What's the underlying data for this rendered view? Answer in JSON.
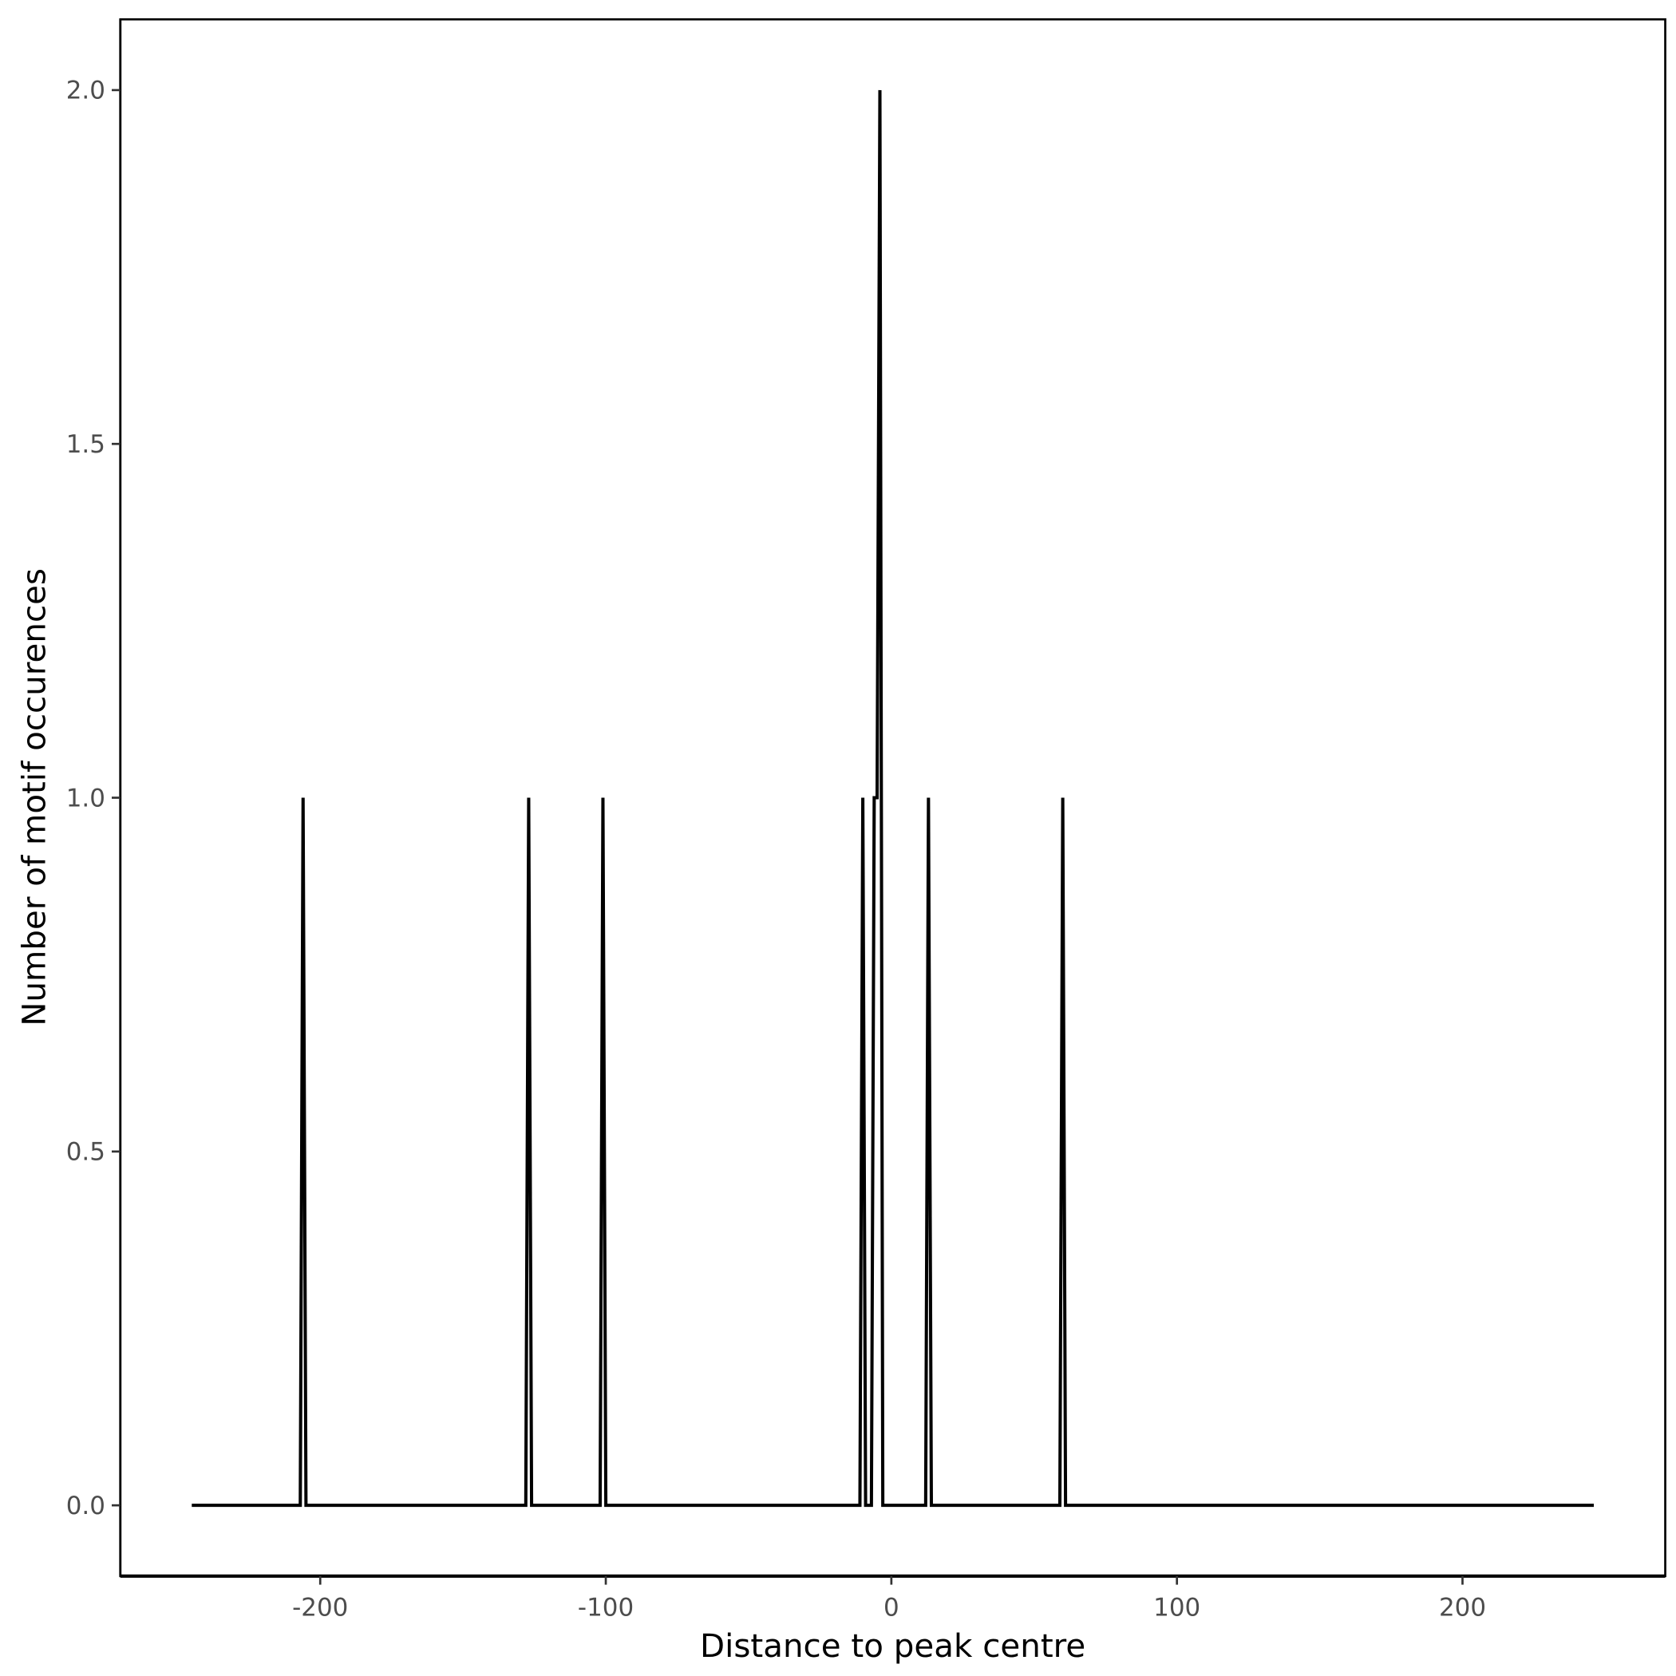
{
  "chart_data": {
    "type": "line",
    "title": "",
    "xlabel": "Distance to peak centre",
    "ylabel": "Number of motif occurences",
    "xlim": [
      -270,
      271
    ],
    "ylim": [
      -0.1,
      2.1
    ],
    "xticks": [
      -200,
      -100,
      0,
      100,
      200
    ],
    "xtick_labels": [
      "-200",
      "-100",
      "0",
      "100",
      "200"
    ],
    "yticks": [
      0,
      0.5,
      1,
      1.5,
      2
    ],
    "ytick_labels": [
      "0.0",
      "0.5",
      "1.0",
      "1.5",
      "2.0"
    ],
    "grid": false,
    "line_color": "#000000",
    "points": [
      [
        -245,
        0
      ],
      [
        -207,
        0
      ],
      [
        -206,
        1
      ],
      [
        -205,
        0
      ],
      [
        -128,
        0
      ],
      [
        -127,
        1
      ],
      [
        -126,
        0
      ],
      [
        -102,
        0
      ],
      [
        -101,
        1
      ],
      [
        -100,
        0
      ],
      [
        -11,
        0
      ],
      [
        -10,
        1
      ],
      [
        -9,
        0
      ],
      [
        -7,
        0
      ],
      [
        -6,
        1
      ],
      [
        -5,
        1
      ],
      [
        -4,
        2
      ],
      [
        -3,
        0
      ],
      [
        12,
        0
      ],
      [
        13,
        1
      ],
      [
        14,
        0
      ],
      [
        59,
        0
      ],
      [
        60,
        1
      ],
      [
        61,
        0
      ],
      [
        246,
        0
      ]
    ]
  }
}
